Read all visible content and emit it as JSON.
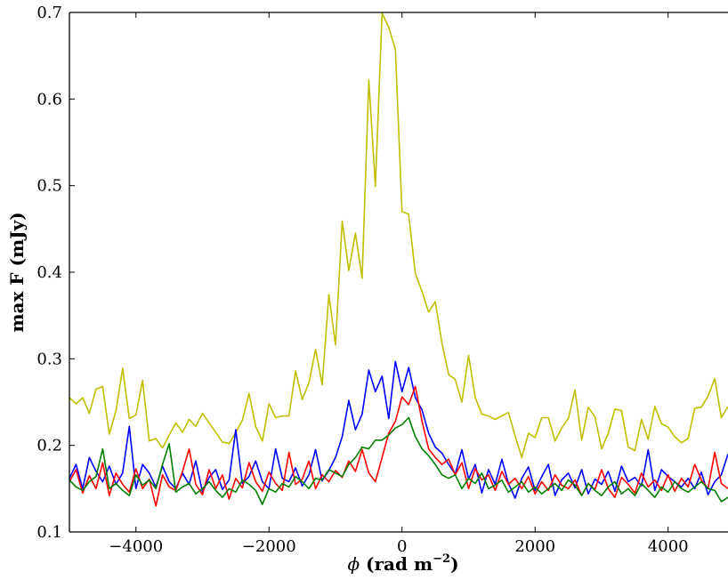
{
  "chart_data": {
    "type": "line",
    "xlabel": {
      "symbol": "ϕ",
      "text": " (rad m",
      "exponent": "−2",
      "close": ")"
    },
    "ylabel": "max F (mJy)",
    "xlim": [
      -5000,
      4900
    ],
    "ylim": [
      0.1,
      0.7
    ],
    "xticks": [
      -4000,
      -2000,
      0,
      2000,
      4000
    ],
    "xtick_labels": [
      "−4000",
      "−2000",
      "0",
      "2000",
      "4000"
    ],
    "yticks": [
      0.1,
      0.2,
      0.3,
      0.4,
      0.5,
      0.6,
      0.7
    ],
    "ytick_labels": [
      "0.1",
      "0.2",
      "0.3",
      "0.4",
      "0.5",
      "0.6",
      "0.7"
    ],
    "grid": false,
    "legend": "none",
    "series": [
      {
        "color": "#bfbf00",
        "x": [
          -5000,
          -4900,
          -4800,
          -4700,
          -4600,
          -4500,
          -4400,
          -4300,
          -4200,
          -4100,
          -4000,
          -3900,
          -3800,
          -3700,
          -3600,
          -3500,
          -3400,
          -3300,
          -3200,
          -3100,
          -3000,
          -2900,
          -2800,
          -2700,
          -2600,
          -2500,
          -2400,
          -2300,
          -2200,
          -2100,
          -2000,
          -1900,
          -1800,
          -1700,
          -1600,
          -1500,
          -1400,
          -1300,
          -1200,
          -1100,
          -1000,
          -900,
          -800,
          -700,
          -600,
          -500,
          -400,
          -300,
          -200,
          -100,
          0,
          100,
          200,
          300,
          400,
          500,
          600,
          700,
          800,
          900,
          1000,
          1100,
          1200,
          1300,
          1400,
          1500,
          1600,
          1700,
          1800,
          1900,
          2000,
          2100,
          2200,
          2300,
          2400,
          2500,
          2600,
          2700,
          2800,
          2900,
          3000,
          3100,
          3200,
          3300,
          3400,
          3500,
          3600,
          3700,
          3800,
          3900,
          4000,
          4100,
          4200,
          4300,
          4400,
          4500,
          4600,
          4700,
          4800,
          4900
        ],
        "y": [
          0.255,
          0.248,
          0.255,
          0.237,
          0.265,
          0.268,
          0.213,
          0.24,
          0.289,
          0.231,
          0.235,
          0.275,
          0.205,
          0.208,
          0.197,
          0.212,
          0.226,
          0.215,
          0.23,
          0.222,
          0.237,
          0.226,
          0.215,
          0.204,
          0.202,
          0.215,
          0.229,
          0.26,
          0.222,
          0.205,
          0.248,
          0.232,
          0.234,
          0.234,
          0.286,
          0.253,
          0.272,
          0.311,
          0.27,
          0.374,
          0.316,
          0.459,
          0.402,
          0.445,
          0.393,
          0.622,
          0.499,
          0.699,
          0.683,
          0.657,
          0.47,
          0.467,
          0.398,
          0.378,
          0.354,
          0.366,
          0.318,
          0.282,
          0.276,
          0.25,
          0.304,
          0.255,
          0.236,
          0.234,
          0.23,
          0.234,
          0.238,
          0.211,
          0.186,
          0.214,
          0.209,
          0.232,
          0.232,
          0.205,
          0.22,
          0.231,
          0.264,
          0.206,
          0.244,
          0.233,
          0.196,
          0.214,
          0.242,
          0.24,
          0.198,
          0.194,
          0.23,
          0.207,
          0.245,
          0.225,
          0.221,
          0.21,
          0.203,
          0.208,
          0.243,
          0.244,
          0.257,
          0.277,
          0.232,
          0.245
        ]
      },
      {
        "color": "#0000ff",
        "x": [
          -5000,
          -4900,
          -4800,
          -4700,
          -4600,
          -4500,
          -4400,
          -4300,
          -4200,
          -4100,
          -4000,
          -3900,
          -3800,
          -3700,
          -3600,
          -3500,
          -3400,
          -3300,
          -3200,
          -3100,
          -3000,
          -2900,
          -2800,
          -2700,
          -2600,
          -2500,
          -2400,
          -2300,
          -2200,
          -2100,
          -2000,
          -1900,
          -1800,
          -1700,
          -1600,
          -1500,
          -1400,
          -1300,
          -1200,
          -1100,
          -1000,
          -900,
          -800,
          -700,
          -600,
          -500,
          -400,
          -300,
          -200,
          -100,
          0,
          100,
          200,
          300,
          400,
          500,
          600,
          700,
          800,
          900,
          1000,
          1100,
          1200,
          1300,
          1400,
          1500,
          1600,
          1700,
          1800,
          1900,
          2000,
          2100,
          2200,
          2300,
          2400,
          2500,
          2600,
          2700,
          2800,
          2900,
          3000,
          3100,
          3200,
          3300,
          3400,
          3500,
          3600,
          3700,
          3800,
          3900,
          4000,
          4100,
          4200,
          4300,
          4400,
          4500,
          4600,
          4700,
          4800,
          4900
        ],
        "y": [
          0.162,
          0.178,
          0.15,
          0.186,
          0.17,
          0.158,
          0.176,
          0.155,
          0.168,
          0.222,
          0.15,
          0.178,
          0.168,
          0.152,
          0.176,
          0.158,
          0.15,
          0.168,
          0.155,
          0.182,
          0.146,
          0.163,
          0.172,
          0.149,
          0.16,
          0.218,
          0.156,
          0.164,
          0.182,
          0.158,
          0.15,
          0.196,
          0.162,
          0.158,
          0.174,
          0.153,
          0.166,
          0.195,
          0.159,
          0.171,
          0.186,
          0.21,
          0.252,
          0.218,
          0.236,
          0.287,
          0.262,
          0.28,
          0.231,
          0.297,
          0.262,
          0.29,
          0.255,
          0.241,
          0.214,
          0.198,
          0.191,
          0.178,
          0.167,
          0.195,
          0.161,
          0.178,
          0.145,
          0.172,
          0.155,
          0.184,
          0.156,
          0.139,
          0.162,
          0.175,
          0.148,
          0.164,
          0.178,
          0.142,
          0.16,
          0.168,
          0.151,
          0.172,
          0.144,
          0.161,
          0.155,
          0.17,
          0.147,
          0.176,
          0.158,
          0.163,
          0.153,
          0.195,
          0.148,
          0.172,
          0.164,
          0.158,
          0.152,
          0.162,
          0.15,
          0.169,
          0.143,
          0.158,
          0.166,
          0.19
        ]
      },
      {
        "color": "#ff0000",
        "x": [
          -5000,
          -4900,
          -4800,
          -4700,
          -4600,
          -4500,
          -4400,
          -4300,
          -4200,
          -4100,
          -4000,
          -3900,
          -3800,
          -3700,
          -3600,
          -3500,
          -3400,
          -3300,
          -3200,
          -3100,
          -3000,
          -2900,
          -2800,
          -2700,
          -2600,
          -2500,
          -2400,
          -2300,
          -2200,
          -2100,
          -2000,
          -1900,
          -1800,
          -1700,
          -1600,
          -1500,
          -1400,
          -1300,
          -1200,
          -1100,
          -1000,
          -900,
          -800,
          -700,
          -600,
          -500,
          -400,
          -300,
          -200,
          -100,
          0,
          100,
          200,
          300,
          400,
          500,
          600,
          700,
          800,
          900,
          1000,
          1100,
          1200,
          1300,
          1400,
          1500,
          1600,
          1700,
          1800,
          1900,
          2000,
          2100,
          2200,
          2300,
          2400,
          2500,
          2600,
          2700,
          2800,
          2900,
          3000,
          3100,
          3200,
          3300,
          3400,
          3500,
          3600,
          3700,
          3800,
          3900,
          4000,
          4100,
          4200,
          4300,
          4400,
          4500,
          4600,
          4700,
          4800,
          4900
        ],
        "y": [
          0.158,
          0.172,
          0.145,
          0.165,
          0.15,
          0.18,
          0.142,
          0.168,
          0.155,
          0.146,
          0.173,
          0.15,
          0.161,
          0.13,
          0.166,
          0.152,
          0.148,
          0.17,
          0.196,
          0.155,
          0.143,
          0.172,
          0.15,
          0.166,
          0.138,
          0.162,
          0.151,
          0.18,
          0.158,
          0.147,
          0.169,
          0.156,
          0.148,
          0.192,
          0.155,
          0.161,
          0.182,
          0.15,
          0.166,
          0.158,
          0.171,
          0.163,
          0.182,
          0.17,
          0.195,
          0.168,
          0.158,
          0.186,
          0.214,
          0.228,
          0.256,
          0.247,
          0.268,
          0.228,
          0.196,
          0.186,
          0.178,
          0.184,
          0.166,
          0.18,
          0.15,
          0.173,
          0.16,
          0.166,
          0.148,
          0.17,
          0.155,
          0.162,
          0.15,
          0.164,
          0.144,
          0.158,
          0.148,
          0.166,
          0.154,
          0.15,
          0.16,
          0.142,
          0.156,
          0.149,
          0.172,
          0.15,
          0.14,
          0.163,
          0.155,
          0.145,
          0.168,
          0.152,
          0.16,
          0.148,
          0.166,
          0.147,
          0.162,
          0.152,
          0.178,
          0.16,
          0.15,
          0.192,
          0.156,
          0.15
        ]
      },
      {
        "color": "#008000",
        "x": [
          -5000,
          -4900,
          -4800,
          -4700,
          -4600,
          -4500,
          -4400,
          -4300,
          -4200,
          -4100,
          -4000,
          -3900,
          -3800,
          -3700,
          -3600,
          -3500,
          -3400,
          -3300,
          -3200,
          -3100,
          -3000,
          -2900,
          -2800,
          -2700,
          -2600,
          -2500,
          -2400,
          -2300,
          -2200,
          -2100,
          -2000,
          -1900,
          -1800,
          -1700,
          -1600,
          -1500,
          -1400,
          -1300,
          -1200,
          -1100,
          -1000,
          -900,
          -800,
          -700,
          -600,
          -500,
          -400,
          -300,
          -200,
          -100,
          0,
          100,
          200,
          300,
          400,
          500,
          600,
          700,
          800,
          900,
          1000,
          1100,
          1200,
          1300,
          1400,
          1500,
          1600,
          1700,
          1800,
          1900,
          2000,
          2100,
          2200,
          2300,
          2400,
          2500,
          2600,
          2700,
          2800,
          2900,
          3000,
          3100,
          3200,
          3300,
          3400,
          3500,
          3600,
          3700,
          3800,
          3900,
          4000,
          4100,
          4200,
          4300,
          4400,
          4500,
          4600,
          4700,
          4800,
          4900
        ],
        "y": [
          0.16,
          0.152,
          0.148,
          0.158,
          0.164,
          0.196,
          0.15,
          0.156,
          0.148,
          0.142,
          0.166,
          0.154,
          0.16,
          0.15,
          0.178,
          0.202,
          0.146,
          0.152,
          0.156,
          0.144,
          0.15,
          0.158,
          0.148,
          0.14,
          0.15,
          0.146,
          0.16,
          0.155,
          0.148,
          0.132,
          0.15,
          0.146,
          0.156,
          0.152,
          0.164,
          0.158,
          0.15,
          0.162,
          0.16,
          0.172,
          0.168,
          0.164,
          0.178,
          0.186,
          0.198,
          0.196,
          0.206,
          0.206,
          0.212,
          0.22,
          0.224,
          0.232,
          0.21,
          0.196,
          0.188,
          0.178,
          0.166,
          0.162,
          0.166,
          0.15,
          0.162,
          0.156,
          0.168,
          0.15,
          0.154,
          0.16,
          0.146,
          0.152,
          0.158,
          0.146,
          0.152,
          0.144,
          0.15,
          0.156,
          0.148,
          0.16,
          0.154,
          0.142,
          0.156,
          0.148,
          0.142,
          0.152,
          0.158,
          0.144,
          0.15,
          0.142,
          0.156,
          0.148,
          0.14,
          0.152,
          0.146,
          0.158,
          0.15,
          0.146,
          0.152,
          0.158,
          0.15,
          0.148,
          0.135,
          0.14
        ]
      }
    ]
  }
}
